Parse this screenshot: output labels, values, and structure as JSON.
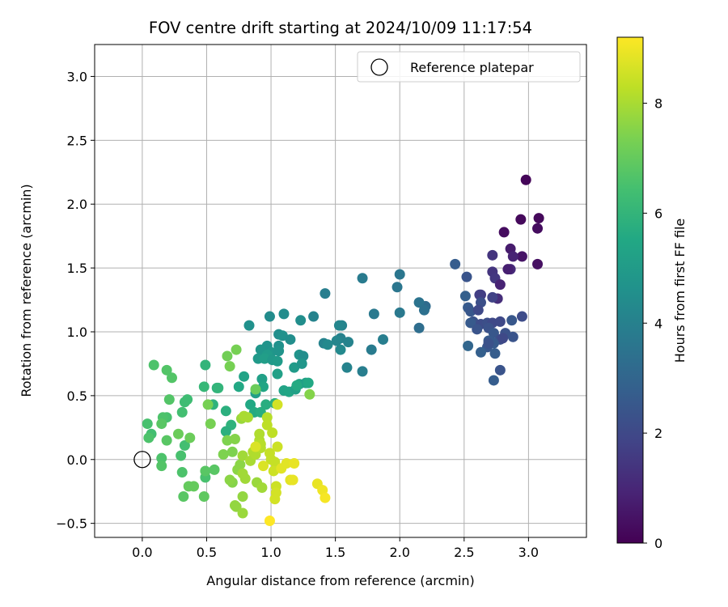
{
  "chart_data": {
    "type": "scatter",
    "title": "FOV centre drift starting at 2024/10/09 11:17:54",
    "xlabel": "Angular distance from reference (arcmin)",
    "ylabel": "Rotation from reference (arcmin)",
    "xlim": [
      -0.37,
      3.45
    ],
    "ylim": [
      -0.61,
      3.25
    ],
    "xticks": [
      "0.0",
      "0.5",
      "1.0",
      "1.5",
      "2.0",
      "2.5",
      "3.0"
    ],
    "xtick_values": [
      0,
      0.5,
      1,
      1.5,
      2,
      2.5,
      3
    ],
    "yticks": [
      "−0.5",
      "0.0",
      "0.5",
      "1.0",
      "1.5",
      "2.0",
      "2.5",
      "3.0"
    ],
    "ytick_values": [
      -0.5,
      0,
      0.5,
      1,
      1.5,
      2,
      2.5,
      3
    ],
    "grid": true,
    "legend": {
      "placement": "top-right",
      "entries": [
        {
          "label": "Reference platepar",
          "marker": "open-circle"
        }
      ]
    },
    "reference_point": {
      "x": 0,
      "y": 0
    },
    "colorbar": {
      "label": "Hours from first FF file",
      "colormap": "viridis",
      "range": [
        0,
        9.2
      ],
      "ticks": [
        "0",
        "2",
        "4",
        "6",
        "8"
      ],
      "tick_values": [
        0,
        2,
        4,
        6,
        8
      ]
    },
    "points": [
      [
        2.98,
        2.19,
        0.1
      ],
      [
        3.08,
        1.89,
        0.2
      ],
      [
        2.94,
        1.88,
        0.2
      ],
      [
        3.07,
        1.81,
        0.3
      ],
      [
        2.81,
        1.78,
        0.3
      ],
      [
        2.95,
        1.59,
        0.5
      ],
      [
        3.07,
        1.53,
        0.4
      ],
      [
        2.86,
        1.65,
        0.7
      ],
      [
        2.88,
        1.59,
        0.9
      ],
      [
        2.72,
        1.6,
        1.4
      ],
      [
        2.72,
        1.47,
        1.4
      ],
      [
        2.86,
        1.49,
        1.1
      ],
      [
        2.84,
        1.49,
        0.8
      ],
      [
        2.74,
        1.42,
        1.5
      ],
      [
        2.78,
        1.37,
        0.9
      ],
      [
        2.63,
        1.29,
        1.6
      ],
      [
        2.62,
        1.29,
        1.7
      ],
      [
        2.76,
        1.26,
        1.2
      ],
      [
        2.72,
        1.27,
        1.8
      ],
      [
        2.51,
        1.28,
        2.8
      ],
      [
        2.43,
        1.53,
        2.7
      ],
      [
        2.52,
        1.43,
        2.4
      ],
      [
        2.53,
        1.19,
        2.6
      ],
      [
        2.55,
        1.16,
        2.5
      ],
      [
        2.63,
        1.23,
        2.2
      ],
      [
        2.61,
        1.17,
        2.0
      ],
      [
        2.57,
        1.08,
        2.3
      ],
      [
        2.55,
        1.07,
        2.6
      ],
      [
        2.63,
        1.06,
        2.1
      ],
      [
        2.6,
        1.02,
        2.4
      ],
      [
        2.68,
        1.07,
        2.2
      ],
      [
        2.72,
        1.07,
        2.0
      ],
      [
        2.69,
        1.03,
        2.3
      ],
      [
        2.73,
        0.99,
        2.5
      ],
      [
        2.78,
        1.08,
        2.0
      ],
      [
        2.87,
        1.09,
        2.5
      ],
      [
        2.95,
        1.12,
        2.1
      ],
      [
        2.82,
        0.99,
        2.3
      ],
      [
        2.78,
        0.94,
        2.2
      ],
      [
        2.73,
        0.91,
        2.6
      ],
      [
        2.8,
        0.95,
        2.0
      ],
      [
        2.88,
        0.96,
        2.4
      ],
      [
        2.69,
        0.93,
        2.6
      ],
      [
        2.53,
        0.89,
        3.0
      ],
      [
        2.68,
        0.88,
        2.5
      ],
      [
        2.63,
        0.84,
        2.8
      ],
      [
        2.74,
        0.83,
        2.7
      ],
      [
        2.78,
        0.7,
        2.4
      ],
      [
        2.73,
        0.62,
        2.7
      ],
      [
        2.69,
        0.91,
        2.3
      ],
      [
        2.2,
        1.2,
        3.2
      ],
      [
        2.15,
        1.23,
        3.5
      ],
      [
        2.19,
        1.17,
        3.4
      ],
      [
        2.15,
        1.03,
        3.3
      ],
      [
        2.0,
        1.45,
        3.6
      ],
      [
        1.98,
        1.35,
        3.6
      ],
      [
        2.0,
        1.15,
        3.7
      ],
      [
        1.8,
        1.14,
        3.7
      ],
      [
        1.71,
        1.42,
        3.8
      ],
      [
        1.87,
        0.94,
        3.9
      ],
      [
        1.78,
        0.86,
        3.8
      ],
      [
        1.71,
        0.69,
        3.9
      ],
      [
        1.42,
        1.3,
        3.9
      ],
      [
        1.33,
        1.12,
        4.1
      ],
      [
        1.55,
        1.05,
        4.1
      ],
      [
        1.53,
        1.05,
        4.2
      ],
      [
        1.54,
        0.95,
        4.0
      ],
      [
        1.51,
        0.93,
        4.2
      ],
      [
        1.41,
        0.91,
        4.1
      ],
      [
        1.44,
        0.9,
        4.3
      ],
      [
        1.6,
        0.92,
        4.1
      ],
      [
        1.54,
        0.86,
        4.3
      ],
      [
        1.59,
        0.72,
        4.1
      ],
      [
        1.1,
        1.14,
        4.4
      ],
      [
        1.23,
        1.09,
        4.5
      ],
      [
        0.99,
        1.12,
        4.4
      ],
      [
        0.83,
        1.05,
        4.6
      ],
      [
        1.06,
        0.98,
        4.5
      ],
      [
        1.09,
        0.97,
        4.6
      ],
      [
        1.15,
        0.94,
        4.5
      ],
      [
        1.22,
        0.82,
        4.7
      ],
      [
        1.25,
        0.81,
        4.5
      ],
      [
        1.06,
        0.89,
        4.6
      ],
      [
        0.97,
        0.89,
        4.7
      ],
      [
        0.92,
        0.86,
        4.8
      ],
      [
        1.0,
        0.84,
        4.8
      ],
      [
        1.06,
        0.85,
        4.7
      ],
      [
        0.97,
        0.82,
        5.0
      ],
      [
        0.9,
        0.79,
        4.9
      ],
      [
        0.95,
        0.79,
        5.1
      ],
      [
        1.01,
        0.78,
        4.9
      ],
      [
        1.05,
        0.77,
        5.0
      ],
      [
        1.18,
        0.72,
        5.0
      ],
      [
        1.24,
        0.75,
        4.8
      ],
      [
        1.05,
        0.67,
        5.2
      ],
      [
        0.93,
        0.63,
        5.2
      ],
      [
        0.79,
        0.65,
        5.3
      ],
      [
        0.88,
        0.52,
        5.1
      ],
      [
        0.94,
        0.57,
        5.4
      ],
      [
        1.1,
        0.54,
        5.3
      ],
      [
        1.14,
        0.53,
        5.4
      ],
      [
        1.19,
        0.55,
        5.2
      ],
      [
        1.22,
        0.59,
        5.3
      ],
      [
        1.27,
        0.6,
        5.2
      ],
      [
        1.29,
        0.6,
        5.5
      ],
      [
        1.2,
        0.58,
        5.6
      ],
      [
        0.75,
        0.57,
        5.5
      ],
      [
        0.84,
        0.43,
        5.5
      ],
      [
        0.87,
        0.37,
        5.6
      ],
      [
        0.92,
        0.37,
        5.7
      ],
      [
        0.96,
        0.43,
        5.7
      ],
      [
        1.03,
        0.44,
        5.8
      ],
      [
        0.65,
        0.38,
        5.8
      ],
      [
        0.55,
        0.43,
        5.9
      ],
      [
        0.58,
        0.56,
        5.9
      ],
      [
        0.59,
        0.56,
        6.0
      ],
      [
        0.49,
        0.74,
        6.0
      ],
      [
        0.48,
        0.57,
        6.1
      ],
      [
        0.69,
        0.27,
        5.9
      ],
      [
        0.65,
        0.22,
        5.8
      ],
      [
        0.35,
        0.47,
        6.3
      ],
      [
        0.33,
        0.45,
        6.3
      ],
      [
        0.31,
        0.37,
        6.4
      ],
      [
        0.19,
        0.33,
        6.5
      ],
      [
        0.09,
        0.74,
        6.6
      ],
      [
        0.19,
        0.7,
        6.7
      ],
      [
        0.23,
        0.64,
        6.7
      ],
      [
        0.21,
        0.47,
        6.7
      ],
      [
        0.16,
        0.33,
        6.6
      ],
      [
        0.04,
        0.28,
        6.5
      ],
      [
        0.15,
        0.28,
        6.8
      ],
      [
        0.07,
        0.2,
        6.4
      ],
      [
        0.05,
        0.17,
        6.6
      ],
      [
        0.19,
        0.15,
        6.8
      ],
      [
        0.33,
        0.11,
        6.4
      ],
      [
        0.3,
        0.03,
        6.5
      ],
      [
        0.15,
        0.01,
        6.6
      ],
      [
        0.15,
        -0.05,
        6.7
      ],
      [
        0.31,
        -0.1,
        6.6
      ],
      [
        0.49,
        -0.14,
        6.5
      ],
      [
        0.49,
        -0.09,
        6.8
      ],
      [
        0.56,
        -0.08,
        6.8
      ],
      [
        0.32,
        -0.29,
        6.8
      ],
      [
        0.48,
        -0.29,
        6.9
      ],
      [
        0.36,
        -0.21,
        7.0
      ],
      [
        0.4,
        -0.21,
        7.0
      ],
      [
        0.37,
        0.17,
        7.1
      ],
      [
        0.28,
        0.2,
        7.1
      ],
      [
        0.66,
        0.81,
        7.2
      ],
      [
        0.73,
        0.86,
        7.3
      ],
      [
        0.68,
        0.73,
        7.3
      ],
      [
        0.53,
        0.28,
        7.3
      ],
      [
        0.51,
        0.43,
        7.3
      ],
      [
        0.63,
        0.04,
        7.4
      ],
      [
        0.7,
        0.06,
        7.4
      ],
      [
        0.66,
        0.15,
        7.4
      ],
      [
        0.72,
        0.16,
        7.5
      ],
      [
        0.7,
        -0.18,
        7.5
      ],
      [
        0.68,
        -0.16,
        7.6
      ],
      [
        0.74,
        -0.08,
        7.6
      ],
      [
        0.76,
        -0.04,
        7.6
      ],
      [
        0.72,
        -0.36,
        7.7
      ],
      [
        0.73,
        -0.37,
        7.7
      ],
      [
        0.78,
        -0.42,
        7.8
      ],
      [
        0.78,
        -0.29,
        7.7
      ],
      [
        0.89,
        -0.18,
        7.8
      ],
      [
        0.93,
        -0.22,
        7.9
      ],
      [
        0.8,
        -0.15,
        7.9
      ],
      [
        0.78,
        0.03,
        7.9
      ],
      [
        0.78,
        -0.11,
        7.9
      ],
      [
        0.77,
        0.32,
        7.8
      ],
      [
        0.79,
        0.34,
        8.0
      ],
      [
        0.82,
        0.33,
        8.0
      ],
      [
        0.84,
        -0.01,
        8.0
      ],
      [
        0.86,
        0.06,
        8.1
      ],
      [
        0.88,
        0.04,
        8.1
      ],
      [
        0.91,
        0.2,
        8.1
      ],
      [
        0.91,
        0.15,
        8.1
      ],
      [
        0.92,
        0.09,
        8.2
      ],
      [
        0.92,
        0.12,
        8.2
      ],
      [
        0.97,
        0.33,
        8.2
      ],
      [
        0.97,
        0.27,
        8.3
      ],
      [
        0.99,
        0.05,
        8.4
      ],
      [
        1.0,
        0.0,
        8.4
      ],
      [
        1.01,
        0.21,
        8.3
      ],
      [
        1.03,
        -0.02,
        8.4
      ],
      [
        1.05,
        0.1,
        8.5
      ],
      [
        1.02,
        -0.09,
        8.5
      ],
      [
        1.04,
        -0.21,
        8.5
      ],
      [
        1.04,
        -0.26,
        8.6
      ],
      [
        1.3,
        0.51,
        7.5
      ],
      [
        1.03,
        -0.31,
        8.6
      ],
      [
        0.88,
        0.55,
        7.1
      ],
      [
        0.88,
        0.1,
        8.7
      ],
      [
        0.94,
        -0.05,
        8.7
      ],
      [
        1.08,
        -0.07,
        8.8
      ],
      [
        1.12,
        -0.03,
        8.8
      ],
      [
        1.15,
        -0.16,
        8.8
      ],
      [
        1.17,
        -0.16,
        8.9
      ],
      [
        1.18,
        -0.03,
        8.9
      ],
      [
        1.36,
        -0.19,
        8.9
      ],
      [
        1.4,
        -0.24,
        9.0
      ],
      [
        1.42,
        -0.3,
        9.1
      ],
      [
        0.99,
        -0.48,
        9.2
      ],
      [
        1.05,
        0.43,
        8.6
      ]
    ]
  }
}
